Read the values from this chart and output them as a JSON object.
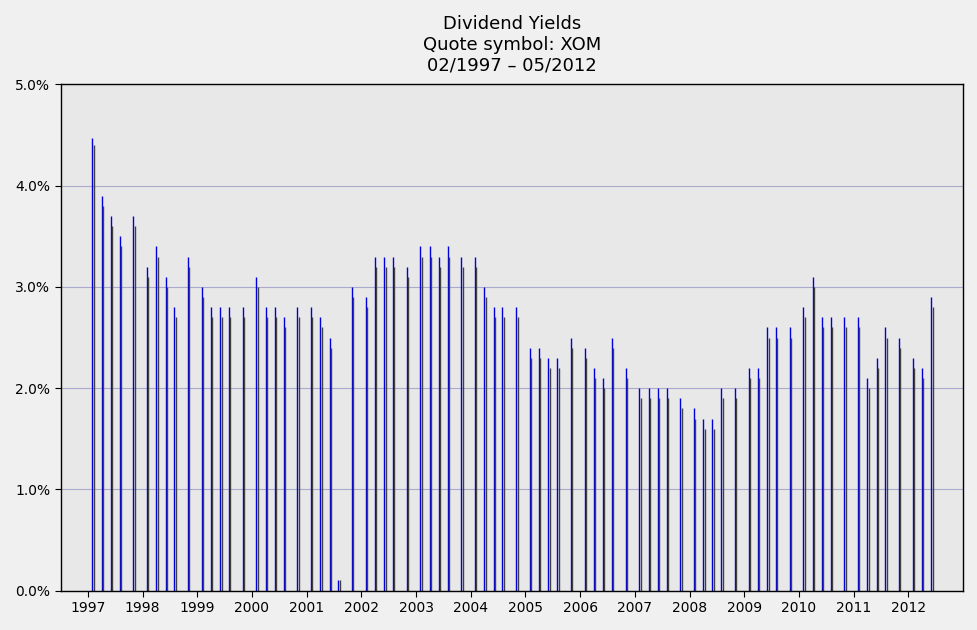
{
  "title_line1": "Dividend Yields",
  "title_line2": "Quote symbol: XOM",
  "title_line3": "02/1997 – 05/2012",
  "background_color": "#f0f0f0",
  "plot_bg_color": "#e8e8e8",
  "bar_color": "#0000dd",
  "dark_bar_color": "#404040",
  "grid_color": "#aaaacc",
  "ylim": [
    0.0,
    0.05
  ],
  "yticks": [
    0.0,
    0.01,
    0.02,
    0.03,
    0.04,
    0.05
  ],
  "xlim_left": 1996.5,
  "xlim_right": 2013.0,
  "data": [
    {
      "x": 1997.08,
      "blue": 0.0447,
      "dark": 0.044
    },
    {
      "x": 1997.25,
      "blue": 0.039,
      "dark": 0.038
    },
    {
      "x": 1997.42,
      "blue": 0.037,
      "dark": 0.036
    },
    {
      "x": 1997.58,
      "blue": 0.035,
      "dark": 0.034
    },
    {
      "x": 1997.83,
      "blue": 0.037,
      "dark": 0.036
    },
    {
      "x": 1998.08,
      "blue": 0.032,
      "dark": 0.031
    },
    {
      "x": 1998.25,
      "blue": 0.034,
      "dark": 0.033
    },
    {
      "x": 1998.42,
      "blue": 0.031,
      "dark": 0.03
    },
    {
      "x": 1998.58,
      "blue": 0.028,
      "dark": 0.027
    },
    {
      "x": 1998.83,
      "blue": 0.033,
      "dark": 0.032
    },
    {
      "x": 1999.08,
      "blue": 0.03,
      "dark": 0.029
    },
    {
      "x": 1999.25,
      "blue": 0.028,
      "dark": 0.027
    },
    {
      "x": 1999.42,
      "blue": 0.028,
      "dark": 0.027
    },
    {
      "x": 1999.58,
      "blue": 0.028,
      "dark": 0.027
    },
    {
      "x": 1999.83,
      "blue": 0.028,
      "dark": 0.027
    },
    {
      "x": 2000.08,
      "blue": 0.031,
      "dark": 0.03
    },
    {
      "x": 2000.25,
      "blue": 0.028,
      "dark": 0.027
    },
    {
      "x": 2000.42,
      "blue": 0.028,
      "dark": 0.027
    },
    {
      "x": 2000.58,
      "blue": 0.027,
      "dark": 0.026
    },
    {
      "x": 2000.83,
      "blue": 0.028,
      "dark": 0.027
    },
    {
      "x": 2001.08,
      "blue": 0.028,
      "dark": 0.027
    },
    {
      "x": 2001.25,
      "blue": 0.027,
      "dark": 0.026
    },
    {
      "x": 2001.42,
      "blue": 0.025,
      "dark": 0.024
    },
    {
      "x": 2001.58,
      "blue": 0.001,
      "dark": 0.001
    },
    {
      "x": 2001.83,
      "blue": 0.03,
      "dark": 0.029
    },
    {
      "x": 2002.08,
      "blue": 0.029,
      "dark": 0.028
    },
    {
      "x": 2002.25,
      "blue": 0.033,
      "dark": 0.032
    },
    {
      "x": 2002.42,
      "blue": 0.033,
      "dark": 0.032
    },
    {
      "x": 2002.58,
      "blue": 0.033,
      "dark": 0.032
    },
    {
      "x": 2002.83,
      "blue": 0.032,
      "dark": 0.031
    },
    {
      "x": 2003.08,
      "blue": 0.034,
      "dark": 0.033
    },
    {
      "x": 2003.25,
      "blue": 0.034,
      "dark": 0.033
    },
    {
      "x": 2003.42,
      "blue": 0.033,
      "dark": 0.032
    },
    {
      "x": 2003.58,
      "blue": 0.034,
      "dark": 0.033
    },
    {
      "x": 2003.83,
      "blue": 0.033,
      "dark": 0.032
    },
    {
      "x": 2004.08,
      "blue": 0.033,
      "dark": 0.032
    },
    {
      "x": 2004.25,
      "blue": 0.03,
      "dark": 0.029
    },
    {
      "x": 2004.42,
      "blue": 0.028,
      "dark": 0.027
    },
    {
      "x": 2004.58,
      "blue": 0.028,
      "dark": 0.027
    },
    {
      "x": 2004.83,
      "blue": 0.028,
      "dark": 0.027
    },
    {
      "x": 2005.08,
      "blue": 0.024,
      "dark": 0.023
    },
    {
      "x": 2005.25,
      "blue": 0.024,
      "dark": 0.023
    },
    {
      "x": 2005.42,
      "blue": 0.023,
      "dark": 0.022
    },
    {
      "x": 2005.58,
      "blue": 0.023,
      "dark": 0.022
    },
    {
      "x": 2005.83,
      "blue": 0.025,
      "dark": 0.024
    },
    {
      "x": 2006.08,
      "blue": 0.024,
      "dark": 0.023
    },
    {
      "x": 2006.25,
      "blue": 0.022,
      "dark": 0.021
    },
    {
      "x": 2006.42,
      "blue": 0.021,
      "dark": 0.02
    },
    {
      "x": 2006.58,
      "blue": 0.025,
      "dark": 0.024
    },
    {
      "x": 2006.83,
      "blue": 0.022,
      "dark": 0.021
    },
    {
      "x": 2007.08,
      "blue": 0.02,
      "dark": 0.019
    },
    {
      "x": 2007.25,
      "blue": 0.02,
      "dark": 0.019
    },
    {
      "x": 2007.42,
      "blue": 0.02,
      "dark": 0.019
    },
    {
      "x": 2007.58,
      "blue": 0.02,
      "dark": 0.019
    },
    {
      "x": 2007.83,
      "blue": 0.019,
      "dark": 0.018
    },
    {
      "x": 2008.08,
      "blue": 0.018,
      "dark": 0.017
    },
    {
      "x": 2008.25,
      "blue": 0.017,
      "dark": 0.016
    },
    {
      "x": 2008.42,
      "blue": 0.017,
      "dark": 0.016
    },
    {
      "x": 2008.58,
      "blue": 0.02,
      "dark": 0.019
    },
    {
      "x": 2008.83,
      "blue": 0.02,
      "dark": 0.019
    },
    {
      "x": 2009.08,
      "blue": 0.022,
      "dark": 0.021
    },
    {
      "x": 2009.25,
      "blue": 0.022,
      "dark": 0.021
    },
    {
      "x": 2009.42,
      "blue": 0.026,
      "dark": 0.025
    },
    {
      "x": 2009.58,
      "blue": 0.026,
      "dark": 0.025
    },
    {
      "x": 2009.83,
      "blue": 0.026,
      "dark": 0.025
    },
    {
      "x": 2010.08,
      "blue": 0.028,
      "dark": 0.027
    },
    {
      "x": 2010.25,
      "blue": 0.031,
      "dark": 0.03
    },
    {
      "x": 2010.42,
      "blue": 0.027,
      "dark": 0.026
    },
    {
      "x": 2010.58,
      "blue": 0.027,
      "dark": 0.026
    },
    {
      "x": 2010.83,
      "blue": 0.027,
      "dark": 0.026
    },
    {
      "x": 2011.08,
      "blue": 0.027,
      "dark": 0.026
    },
    {
      "x": 2011.25,
      "blue": 0.021,
      "dark": 0.02
    },
    {
      "x": 2011.42,
      "blue": 0.023,
      "dark": 0.022
    },
    {
      "x": 2011.58,
      "blue": 0.026,
      "dark": 0.025
    },
    {
      "x": 2011.83,
      "blue": 0.025,
      "dark": 0.024
    },
    {
      "x": 2012.08,
      "blue": 0.023,
      "dark": 0.022
    },
    {
      "x": 2012.25,
      "blue": 0.022,
      "dark": 0.021
    },
    {
      "x": 2012.42,
      "blue": 0.029,
      "dark": 0.028
    }
  ]
}
